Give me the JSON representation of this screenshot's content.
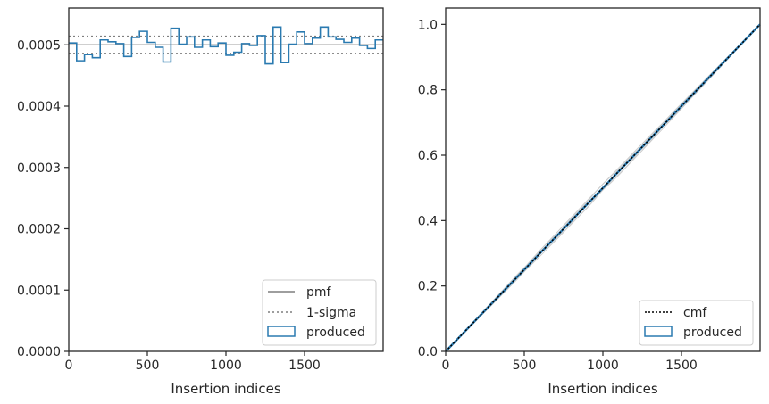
{
  "chart_data": [
    {
      "type": "line",
      "subtype": "step-histogram",
      "title": "",
      "xlabel": "Insertion indices",
      "ylabel": "",
      "xlim": [
        0,
        2000
      ],
      "ylim": [
        0,
        0.00056
      ],
      "xticks": [
        0,
        500,
        1000,
        1500
      ],
      "xtick_labels": [
        "0",
        "500",
        "1000",
        "1500"
      ],
      "yticks": [
        0,
        0.0001,
        0.0002,
        0.0003,
        0.0004,
        0.0005
      ],
      "ytick_labels": [
        "0.0000",
        "0.0001",
        "0.0002",
        "0.0003",
        "0.0004",
        "0.0005"
      ],
      "grid": false,
      "legend_position": "lower-right",
      "legend": [
        "pmf",
        "1-sigma",
        "produced"
      ],
      "pmf": 0.0005,
      "sigma_band": [
        0.000486,
        0.000514
      ],
      "bin_width": 50,
      "produced_values": [
        0.000503,
        0.000474,
        0.000484,
        0.000479,
        0.000508,
        0.000505,
        0.000502,
        0.000481,
        0.000512,
        0.000522,
        0.000504,
        0.000496,
        0.000472,
        0.000527,
        0.000501,
        0.000513,
        0.000496,
        0.000508,
        0.000497,
        0.000503,
        0.000483,
        0.000488,
        0.000502,
        0.000499,
        0.000515,
        0.000469,
        0.000529,
        0.000471,
        0.000501,
        0.000521,
        0.000502,
        0.000511,
        0.000529,
        0.000513,
        0.000509,
        0.000504,
        0.000511,
        0.000499,
        0.000494,
        0.000508
      ],
      "colors": {
        "pmf": "#7f7f7f",
        "sigma": "#7f7f7f",
        "produced": "#2a7ab0"
      }
    },
    {
      "type": "line",
      "title": "",
      "xlabel": "Insertion indices",
      "ylabel": "",
      "xlim": [
        0,
        2000
      ],
      "ylim": [
        0,
        1.05
      ],
      "xticks": [
        0,
        500,
        1000,
        1500
      ],
      "xtick_labels": [
        "0",
        "500",
        "1000",
        "1500"
      ],
      "yticks": [
        0,
        0.2,
        0.4,
        0.6,
        0.8,
        1.0
      ],
      "ytick_labels": [
        "0.0",
        "0.2",
        "0.4",
        "0.6",
        "0.8",
        "1.0"
      ],
      "grid": false,
      "legend_position": "lower-right",
      "legend": [
        "cmf",
        "produced"
      ],
      "cmf": {
        "x": [
          0,
          2000
        ],
        "y": [
          0,
          1
        ]
      },
      "colors": {
        "cmf": "#000000",
        "produced": "#2a7ab0",
        "realizations": "#c8c8c8"
      }
    }
  ]
}
